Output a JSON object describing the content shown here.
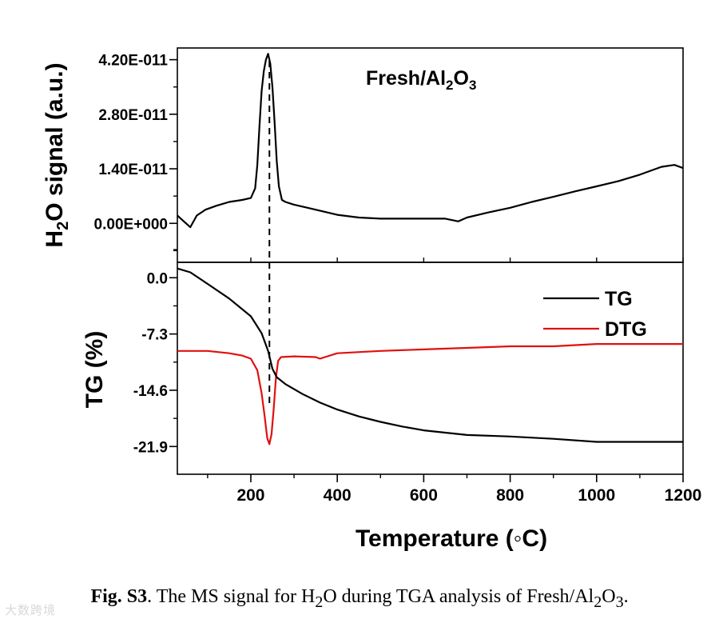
{
  "chart_data": [
    {
      "type": "line",
      "title": "Fresh/Al2O3",
      "title_parts": {
        "main": "Fresh/Al",
        "sub1": "2",
        "mid": "O",
        "sub2": "3"
      },
      "xlabel": "",
      "ylabel": "H2O signal (a.u.)",
      "ylabel_parts": {
        "pre": "H",
        "sub": "2",
        "post": "O signal (a.u.)"
      },
      "xlim": [
        30,
        1200
      ],
      "ylim": [
        -1e-11,
        4.5e-11
      ],
      "yticks": [
        0,
        1.4e-11,
        2.8e-11,
        4.2e-11
      ],
      "ytick_labels": [
        "0.00E+000",
        "1.40E-011",
        "2.80E-011",
        "4.20E-011"
      ],
      "grid": false,
      "series": [
        {
          "color": "#000000",
          "x": [
            30,
            45,
            60,
            75,
            95,
            120,
            150,
            180,
            200,
            210,
            215,
            220,
            225,
            230,
            235,
            240,
            245,
            250,
            255,
            260,
            265,
            272,
            280,
            300,
            350,
            400,
            450,
            500,
            550,
            600,
            650,
            680,
            700,
            750,
            800,
            850,
            900,
            950,
            1000,
            1050,
            1100,
            1150,
            1180,
            1200
          ],
          "y": [
            2e-12,
            5e-13,
            -1e-12,
            2e-12,
            3.5e-12,
            4.5e-12,
            5.5e-12,
            6e-12,
            6.5e-12,
            9e-12,
            1.5e-11,
            2.5e-11,
            3.4e-11,
            3.9e-11,
            4.2e-11,
            4.35e-11,
            4.1e-11,
            3.5e-11,
            2.6e-11,
            1.6e-11,
            9.5e-12,
            6e-12,
            5.5e-12,
            4.8e-12,
            3.5e-12,
            2.2e-12,
            1.5e-12,
            1.2e-12,
            1.2e-12,
            1.2e-12,
            1.2e-12,
            5e-13,
            1.5e-12,
            2.8e-12,
            4e-12,
            5.5e-12,
            6.8e-12,
            8.2e-12,
            9.5e-12,
            1.08e-11,
            1.25e-11,
            1.45e-11,
            1.5e-11,
            1.42e-11
          ]
        }
      ],
      "annotations": [
        {
          "type": "vline",
          "x": 243,
          "style": "dashed"
        }
      ]
    },
    {
      "type": "line",
      "title": "",
      "xlabel": "Temperature (◦C)",
      "ylabel": "TG (%)",
      "xlim": [
        30,
        1200
      ],
      "ylim": [
        -25.5,
        2.0
      ],
      "xticks": [
        200,
        400,
        600,
        800,
        1000,
        1200
      ],
      "xtick_labels": [
        "200",
        "400",
        "600",
        "800",
        "1000",
        "1200"
      ],
      "yticks": [
        0.0,
        -7.3,
        -14.6,
        -21.9
      ],
      "ytick_labels": [
        "0.0",
        "-7.3",
        "-14.6",
        "-21.9"
      ],
      "grid": false,
      "legend_position": "top-right",
      "series": [
        {
          "name": "TG",
          "color": "#000000",
          "x": [
            30,
            60,
            100,
            150,
            200,
            225,
            240,
            250,
            260,
            280,
            320,
            360,
            400,
            450,
            500,
            550,
            600,
            700,
            800,
            900,
            1000,
            1100,
            1200
          ],
          "y": [
            1.2,
            0.7,
            -0.8,
            -2.7,
            -5.0,
            -7.2,
            -9.5,
            -11.8,
            -12.9,
            -13.8,
            -15.1,
            -16.2,
            -17.1,
            -18.0,
            -18.7,
            -19.3,
            -19.8,
            -20.4,
            -20.6,
            -20.9,
            -21.3,
            -21.3,
            -21.3
          ]
        },
        {
          "name": "DTG",
          "color": "#e01010",
          "x": [
            30,
            100,
            150,
            180,
            200,
            215,
            225,
            232,
            238,
            243,
            248,
            253,
            258,
            263,
            270,
            300,
            350,
            360,
            400,
            500,
            600,
            700,
            800,
            900,
            1000,
            1100,
            1200
          ],
          "y": [
            -9.5,
            -9.5,
            -9.8,
            -10.1,
            -10.5,
            -12.0,
            -15.0,
            -18.0,
            -20.8,
            -21.6,
            -20.3,
            -17.0,
            -13.0,
            -10.8,
            -10.3,
            -10.2,
            -10.3,
            -10.5,
            -9.8,
            -9.5,
            -9.3,
            -9.1,
            -8.9,
            -8.9,
            -8.6,
            -8.6,
            -8.6
          ]
        }
      ],
      "annotations": [
        {
          "type": "vline",
          "x": 243,
          "style": "dashed"
        }
      ]
    }
  ],
  "caption": {
    "label": "Fig. S3",
    "text_before": ". The MS signal for H",
    "sub1": "2",
    "text_mid": "O during TGA analysis of Fresh/Al",
    "sub2": "2",
    "mid2": "O",
    "sub3": "3",
    "end": "."
  },
  "watermark": "大数跨境"
}
